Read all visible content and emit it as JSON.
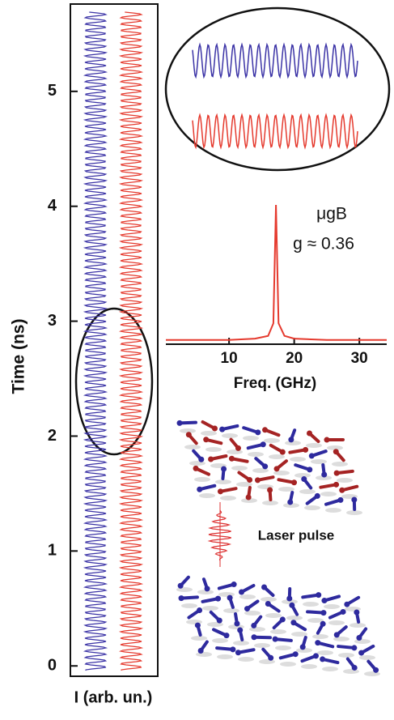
{
  "chart_data": [
    {
      "type": "trace",
      "ylabel": "Time (ns)",
      "xlabel": "I (arb. un.)",
      "ylim": [
        -0.09,
        5.76
      ],
      "yticks": [
        0,
        1,
        2,
        3,
        4,
        5
      ],
      "trace_colors": [
        "#3b33a6",
        "#e53a2e"
      ]
    },
    {
      "type": "line",
      "xlabel": "Freq.  (GHz)",
      "xlim": [
        0.3,
        34.2
      ],
      "xticks": [
        10,
        20,
        30
      ],
      "ylim": [
        0,
        1
      ],
      "x": [
        0.3,
        5,
        10,
        14,
        16,
        16.8,
        17.2,
        17.6,
        18.5,
        20,
        25,
        30,
        34.2
      ],
      "series": [
        {
          "color": "#e53a2e",
          "values": [
            0.03,
            0.03,
            0.03,
            0.04,
            0.06,
            0.15,
            1,
            0.15,
            0.06,
            0.04,
            0.03,
            0.03,
            0.03
          ]
        }
      ],
      "annotations": [
        "μgB",
        "g ≈ 0.36"
      ]
    }
  ],
  "illustration": {
    "label": "Laser pulse"
  }
}
